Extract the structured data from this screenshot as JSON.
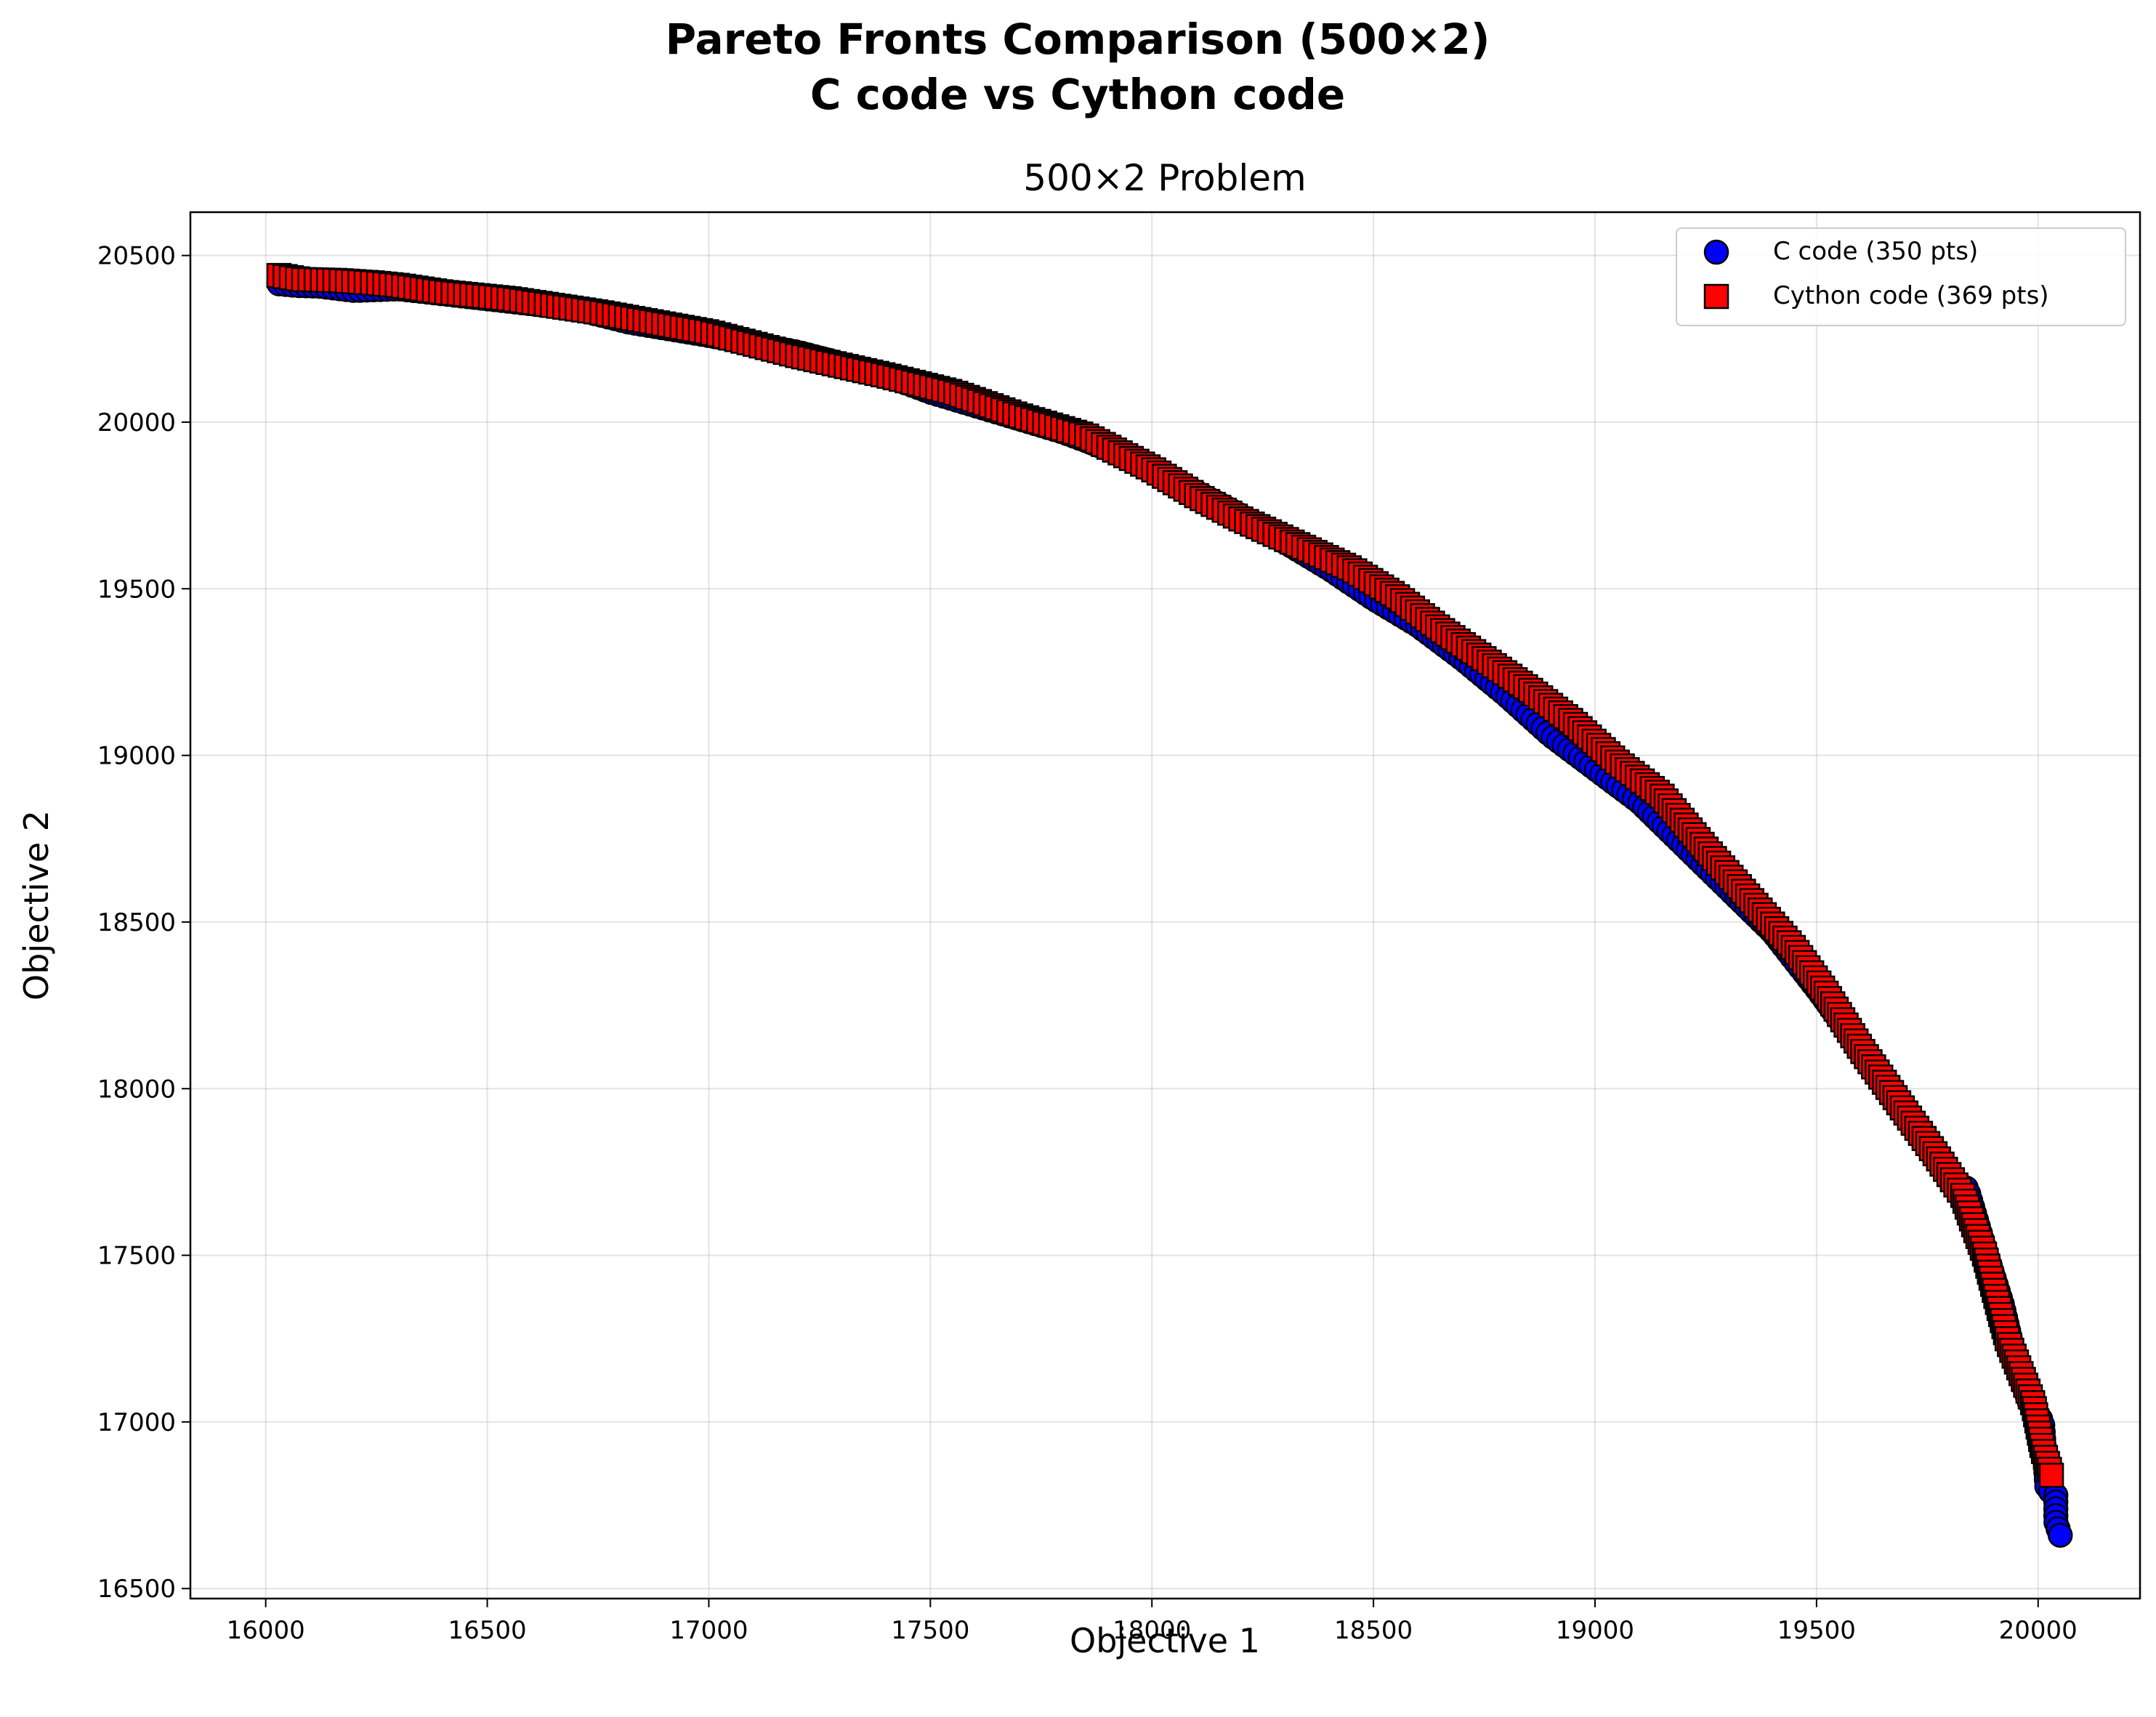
{
  "figure": {
    "suptitle_line1": "Pareto Fronts Comparison (500×2)",
    "suptitle_line2": "C code vs Cython code"
  },
  "chart_data": {
    "type": "scatter",
    "title": "500×2 Problem",
    "xlabel": "Objective 1",
    "ylabel": "Objective 2",
    "xlim": [
      15830,
      20230
    ],
    "ylim": [
      16470,
      20630
    ],
    "xticks": [
      16000,
      16500,
      17000,
      17500,
      18000,
      18500,
      19000,
      19500,
      20000
    ],
    "yticks": [
      16500,
      17000,
      17500,
      18000,
      18500,
      19000,
      19500,
      20000,
      20500
    ],
    "grid": true,
    "legend_position": "upper right",
    "series": [
      {
        "name": "C code (350 pts)",
        "marker": "circle",
        "color": "#0000ff",
        "edge_color": "#000000",
        "count": 350,
        "anchor_points": [
          [
            16030,
            20415
          ],
          [
            16070,
            20410
          ],
          [
            16120,
            20408
          ],
          [
            16200,
            20395
          ],
          [
            16300,
            20400
          ],
          [
            16380,
            20388
          ],
          [
            16500,
            20370
          ],
          [
            16700,
            20340
          ],
          [
            16820,
            20300
          ],
          [
            17000,
            20260
          ],
          [
            17200,
            20210
          ],
          [
            17400,
            20140
          ],
          [
            17500,
            20090
          ],
          [
            17600,
            20050
          ],
          [
            17800,
            19970
          ],
          [
            17900,
            19920
          ],
          [
            18000,
            19860
          ],
          [
            18100,
            19790
          ],
          [
            18200,
            19720
          ],
          [
            18300,
            19640
          ],
          [
            18400,
            19560
          ],
          [
            18500,
            19470
          ],
          [
            18550,
            19430
          ],
          [
            18600,
            19390
          ],
          [
            18700,
            19290
          ],
          [
            18800,
            19180
          ],
          [
            18900,
            19060
          ],
          [
            19000,
            18960
          ],
          [
            19100,
            18860
          ],
          [
            19200,
            18730
          ],
          [
            19300,
            18600
          ],
          [
            19400,
            18470
          ],
          [
            19500,
            18300
          ],
          [
            19600,
            18120
          ],
          [
            19700,
            17920
          ],
          [
            19800,
            17730
          ],
          [
            19840,
            17700
          ],
          [
            19880,
            17520
          ],
          [
            19920,
            17350
          ],
          [
            19950,
            17180
          ],
          [
            19980,
            17060
          ],
          [
            20010,
            17000
          ],
          [
            20020,
            16800
          ],
          [
            20040,
            16780
          ],
          [
            20040,
            16700
          ],
          [
            20050,
            16660
          ]
        ]
      },
      {
        "name": "Cython code (369 pts)",
        "marker": "square",
        "color": "#ff0000",
        "edge_color": "#000000",
        "count": 369,
        "anchor_points": [
          [
            16030,
            20440
          ],
          [
            16080,
            20428
          ],
          [
            16160,
            20425
          ],
          [
            16240,
            20418
          ],
          [
            16300,
            20410
          ],
          [
            16400,
            20390
          ],
          [
            16550,
            20370
          ],
          [
            16750,
            20330
          ],
          [
            17000,
            20270
          ],
          [
            17200,
            20200
          ],
          [
            17400,
            20140
          ],
          [
            17550,
            20090
          ],
          [
            17700,
            20020
          ],
          [
            17850,
            19960
          ],
          [
            18000,
            19860
          ],
          [
            18100,
            19780
          ],
          [
            18200,
            19710
          ],
          [
            18350,
            19620
          ],
          [
            18450,
            19560
          ],
          [
            18550,
            19480
          ],
          [
            18650,
            19380
          ],
          [
            18750,
            19290
          ],
          [
            18850,
            19200
          ],
          [
            18950,
            19100
          ],
          [
            19050,
            18980
          ],
          [
            19150,
            18880
          ],
          [
            19250,
            18720
          ],
          [
            19350,
            18570
          ],
          [
            19450,
            18420
          ],
          [
            19520,
            18290
          ],
          [
            19600,
            18120
          ],
          [
            19700,
            17930
          ],
          [
            19770,
            17800
          ],
          [
            19830,
            17680
          ],
          [
            19880,
            17500
          ],
          [
            19900,
            17400
          ],
          [
            19930,
            17250
          ],
          [
            19960,
            17150
          ],
          [
            19990,
            17050
          ],
          [
            20010,
            16920
          ],
          [
            20030,
            16840
          ]
        ]
      }
    ]
  }
}
